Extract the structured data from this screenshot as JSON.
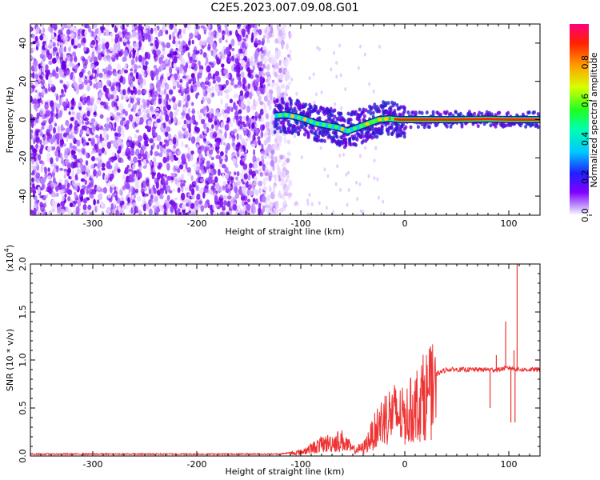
{
  "title": "C2E5.2023.007.09.08.G01",
  "chart_data": [
    {
      "type": "heatmap",
      "xlabel": "Height of straight line (km)",
      "ylabel": "Frequency (Hz)",
      "xlim": [
        -360,
        130
      ],
      "ylim": [
        -50,
        50
      ],
      "xticks": [
        -300,
        -200,
        -100,
        0,
        100
      ],
      "yticks": [
        -40,
        -20,
        0,
        20,
        40
      ],
      "colorbar": {
        "label": "Normalized spectral amplitude",
        "ticks": [
          0.0,
          0.2,
          0.4,
          0.6,
          0.8
        ],
        "range": [
          0,
          1
        ]
      },
      "ridge": {
        "x": [
          -125,
          -115,
          -105,
          -95,
          -85,
          -75,
          -65,
          -55,
          -45,
          -35,
          -25,
          -15,
          -5,
          0,
          20,
          50,
          80,
          100,
          110,
          130
        ],
        "freq": [
          2,
          2.5,
          1.5,
          0,
          -2,
          -3,
          -4,
          -6,
          -4,
          -2,
          0,
          0.5,
          0,
          0,
          0,
          0,
          0.3,
          0,
          0,
          0
        ]
      },
      "noise_region_xlim": [
        -360,
        -120
      ]
    },
    {
      "type": "line",
      "xlabel": "Height of straight line (km)",
      "ylabel": "SNR (10 * v/v)",
      "y_multiplier_label": "(x10",
      "y_multiplier_exp": "4",
      "xlim": [
        -360,
        130
      ],
      "ylim": [
        0,
        2
      ],
      "xticks": [
        -300,
        -200,
        -100,
        0,
        100
      ],
      "yticks": [
        0.0,
        0.5,
        1.0,
        1.5,
        2.0
      ],
      "color": "#ee3333",
      "envelope": {
        "x": [
          -360,
          -120,
          -100,
          -80,
          -60,
          -50,
          -40,
          -30,
          -20,
          -10,
          0,
          10,
          20,
          30,
          40,
          60,
          80,
          90,
          100,
          110,
          130
        ],
        "y": [
          0.02,
          0.02,
          0.05,
          0.15,
          0.2,
          0.08,
          0.1,
          0.3,
          0.5,
          0.55,
          0.5,
          0.65,
          0.8,
          0.85,
          0.9,
          0.9,
          0.9,
          0.9,
          0.92,
          0.9,
          0.9
        ]
      },
      "spikes": [
        {
          "x": 97,
          "y": 1.4
        },
        {
          "x": 105,
          "y": 1.1
        },
        {
          "x": 108,
          "y": 2.0
        },
        {
          "x": 82,
          "y": 0.5
        },
        {
          "x": 88,
          "y": 1.05
        },
        {
          "x": 102,
          "y": 0.35
        },
        {
          "x": 106,
          "y": 0.35
        }
      ]
    }
  ]
}
